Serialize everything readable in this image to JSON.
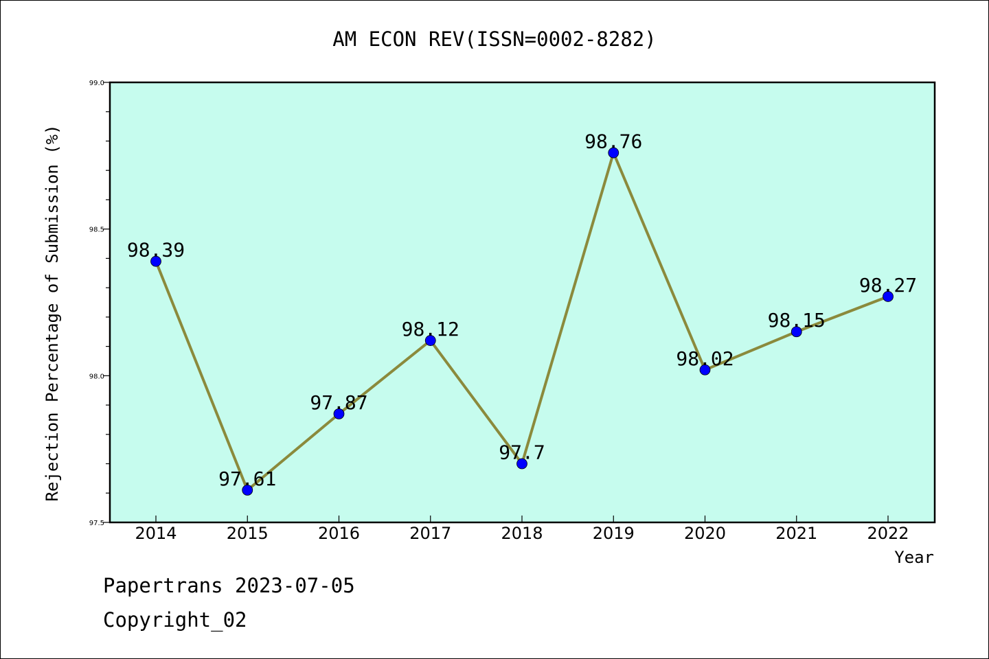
{
  "chart_data": {
    "type": "line",
    "title": "AM ECON REV(ISSN=0002-8282)",
    "xlabel": "Year",
    "ylabel": "Rejection Percentage of Submission (%)",
    "categories": [
      "2014",
      "2015",
      "2016",
      "2017",
      "2018",
      "2019",
      "2020",
      "2021",
      "2022"
    ],
    "values": [
      98.39,
      97.61,
      97.87,
      98.12,
      97.7,
      98.76,
      98.02,
      98.15,
      98.27
    ],
    "data_labels": [
      "98.39",
      "97.61",
      "97.87",
      "98.12",
      "97.7",
      "98.76",
      "98.02",
      "98.15",
      "98.27"
    ],
    "ylim": [
      97.5,
      99.0
    ],
    "yticks": [
      "97.5",
      "98.0",
      "98.5",
      "99.0"
    ],
    "grid": false,
    "legend": "none",
    "line_color": "#8b8a3c",
    "marker_color": "#0000ff",
    "plot_background": "#c6fcee"
  },
  "footer": {
    "line1": "Papertrans 2023-07-05",
    "line2": "Copyright_02"
  }
}
